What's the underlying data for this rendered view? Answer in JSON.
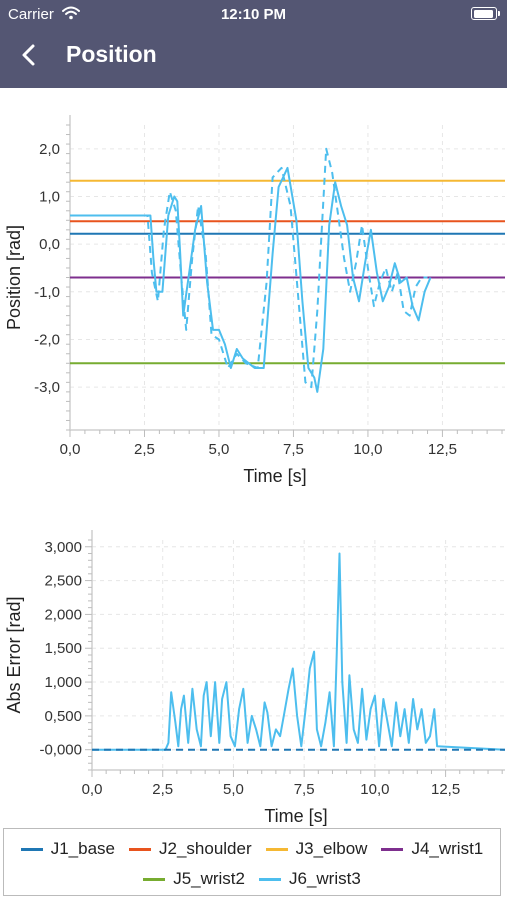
{
  "status_bar": {
    "carrier": "Carrier",
    "time": "12:10 PM"
  },
  "nav": {
    "title": "Position"
  },
  "series_colors": {
    "J1_base": "#1f77b4",
    "J2_shoulder": "#e8541e",
    "J3_elbow": "#f5b833",
    "J4_wrist1": "#7e2f8e",
    "J5_wrist2": "#77ac30",
    "J6_wrist3": "#4dbeee"
  },
  "legend": {
    "items": [
      "J1_base",
      "J2_shoulder",
      "J3_elbow",
      "J4_wrist1",
      "J5_wrist2",
      "J6_wrist3"
    ]
  },
  "chart_data": [
    {
      "type": "line",
      "xlabel": "Time [s]",
      "ylabel": "Position [rad]",
      "xlim": [
        0,
        14.6
      ],
      "ylim": [
        -3.9,
        2.5
      ],
      "xticks": [
        0,
        2.5,
        5,
        7.5,
        10,
        12.5
      ],
      "xtick_labels": [
        "0,0",
        "2,5",
        "5,0",
        "7,5",
        "10,0",
        "12,5"
      ],
      "yticks": [
        2,
        1,
        0,
        -1,
        -2,
        -3
      ],
      "ytick_labels": [
        "2,0",
        "1,0",
        "0,0",
        "-1,0",
        "-2,0",
        "-3,0"
      ],
      "grid": true,
      "series": [
        {
          "name": "J1_base",
          "x": [
            0,
            14.6
          ],
          "y": [
            0.22,
            0.22
          ]
        },
        {
          "name": "J2_shoulder",
          "x": [
            0,
            14.6
          ],
          "y": [
            0.48,
            0.48
          ]
        },
        {
          "name": "J3_elbow",
          "x": [
            0,
            14.6
          ],
          "y": [
            1.33,
            1.33
          ]
        },
        {
          "name": "J4_wrist1",
          "x": [
            0,
            14.6
          ],
          "y": [
            -0.7,
            -0.7
          ]
        },
        {
          "name": "J5_wrist2",
          "x": [
            0,
            14.6
          ],
          "y": [
            -2.5,
            -2.5
          ]
        },
        {
          "name": "J6_wrist3",
          "x": [
            0,
            2.7,
            2.8,
            2.9,
            3.1,
            3.3,
            3.5,
            3.6,
            3.7,
            3.8,
            4.0,
            4.2,
            4.4,
            4.6,
            4.8,
            5.0,
            5.2,
            5.4,
            5.6,
            5.8,
            6.0,
            6.2,
            6.5,
            6.8,
            7.0,
            7.3,
            7.6,
            7.8,
            8.0,
            8.2,
            8.3,
            8.5,
            8.7,
            8.9,
            9.1,
            9.3,
            9.5,
            9.7,
            9.9,
            10.1,
            10.3,
            10.5,
            10.7,
            10.9,
            11.1,
            11.3,
            11.5,
            11.7,
            11.9,
            12.1
          ],
          "y": [
            0.6,
            0.6,
            -0.3,
            -1.0,
            -1.0,
            0.6,
            1.0,
            0.9,
            -0.2,
            -1.5,
            -0.6,
            0.3,
            0.8,
            -0.8,
            -1.8,
            -1.8,
            -2.1,
            -2.6,
            -2.2,
            -2.4,
            -2.5,
            -2.6,
            -2.6,
            -0.2,
            1.2,
            1.6,
            0.5,
            -1.2,
            -2.6,
            -2.8,
            -3.1,
            -2.2,
            0.4,
            1.3,
            0.8,
            0.4,
            -0.7,
            -1.2,
            -0.4,
            0.3,
            -0.6,
            -1.2,
            -0.9,
            -0.4,
            -0.8,
            -0.7,
            -1.3,
            -1.6,
            -1.0,
            -0.7
          ]
        },
        {
          "name": "J6_wrist3",
          "x": [
            0,
            2.6,
            2.75,
            2.95,
            3.15,
            3.35,
            3.55,
            3.75,
            3.9,
            4.1,
            4.3,
            4.55,
            4.75,
            5.0,
            5.3,
            5.6,
            5.9,
            6.3,
            6.6,
            6.8,
            7.1,
            7.4,
            7.7,
            7.9,
            8.1,
            8.3,
            8.6,
            8.8,
            9.0,
            9.2,
            9.4,
            9.6,
            9.8,
            10.0,
            10.2,
            10.4,
            10.6,
            10.8,
            11.0,
            11.2,
            11.4,
            11.6,
            11.8,
            12.0
          ],
          "y": [
            0.6,
            0.6,
            -0.6,
            -1.2,
            0.3,
            1.1,
            0.7,
            -0.8,
            -1.8,
            -0.3,
            0.8,
            -0.2,
            -1.9,
            -2.0,
            -2.6,
            -2.3,
            -2.5,
            -2.6,
            -0.8,
            1.4,
            1.6,
            0.8,
            -1.4,
            -2.9,
            -3.0,
            -1.4,
            2.0,
            1.5,
            0.6,
            -0.3,
            -1.0,
            -0.4,
            0.4,
            -0.5,
            -1.3,
            -0.8,
            -0.5,
            -1.0,
            -0.6,
            -1.4,
            -1.5,
            -0.9,
            -0.7,
            -0.7
          ],
          "dashed": true
        }
      ]
    },
    {
      "type": "line",
      "xlabel": "Time [s]",
      "ylabel": "Abs Error [rad]",
      "xlim": [
        0,
        14.6
      ],
      "ylim": [
        -0.3,
        3.1
      ],
      "xticks": [
        0,
        2.5,
        5,
        7.5,
        10,
        12.5
      ],
      "xtick_labels": [
        "0,0",
        "2,5",
        "5,0",
        "7,5",
        "10,0",
        "12,5"
      ],
      "yticks": [
        3,
        2.5,
        2,
        1.5,
        1,
        0.5,
        0
      ],
      "ytick_labels": [
        "3,000",
        "2,500",
        "2,000",
        "1,500",
        "1,000",
        "0,500",
        "-0,000"
      ],
      "grid": true,
      "series": [
        {
          "name": "J6_wrist3",
          "x": [
            0,
            2.6,
            2.7,
            2.8,
            2.95,
            3.05,
            3.15,
            3.25,
            3.4,
            3.55,
            3.7,
            3.85,
            3.95,
            4.05,
            4.2,
            4.35,
            4.5,
            4.6,
            4.75,
            4.9,
            5.05,
            5.2,
            5.35,
            5.5,
            5.65,
            5.8,
            5.95,
            6.1,
            6.2,
            6.35,
            6.5,
            6.65,
            6.8,
            6.95,
            7.1,
            7.25,
            7.4,
            7.55,
            7.7,
            7.85,
            7.95,
            8.1,
            8.25,
            8.4,
            8.55,
            8.65,
            8.75,
            8.85,
            9.0,
            9.1,
            9.25,
            9.4,
            9.55,
            9.7,
            9.85,
            10.0,
            10.15,
            10.3,
            10.45,
            10.6,
            10.75,
            10.9,
            11.05,
            11.2,
            11.35,
            11.5,
            11.65,
            11.8,
            11.95,
            12.1,
            12.2,
            14.6
          ],
          "y": [
            0,
            0,
            0.1,
            0.85,
            0.4,
            0.05,
            0.6,
            0.8,
            0.1,
            0.9,
            0.3,
            0.05,
            0.8,
            1.0,
            0.2,
            1.0,
            0.1,
            0.75,
            1.0,
            0.2,
            0.05,
            0.6,
            0.9,
            0.1,
            0.5,
            0.3,
            0.05,
            0.7,
            0.55,
            0.05,
            0.3,
            0.2,
            0.55,
            0.9,
            1.2,
            0.5,
            0.05,
            0.6,
            1.2,
            1.45,
            0.3,
            0.05,
            0.4,
            0.85,
            0.05,
            1.4,
            2.9,
            1.0,
            0.1,
            1.1,
            0.3,
            0.1,
            0.9,
            0.15,
            0.6,
            0.8,
            0.05,
            0.75,
            0.4,
            0.05,
            0.7,
            0.2,
            0.6,
            0.1,
            0.75,
            0.3,
            0.6,
            0.1,
            0.2,
            0.6,
            0.05,
            0
          ],
          "dashed": false
        },
        {
          "name": "J1_base",
          "x": [
            0,
            14.6
          ],
          "y": [
            0,
            0
          ],
          "dashed": true
        }
      ]
    }
  ]
}
